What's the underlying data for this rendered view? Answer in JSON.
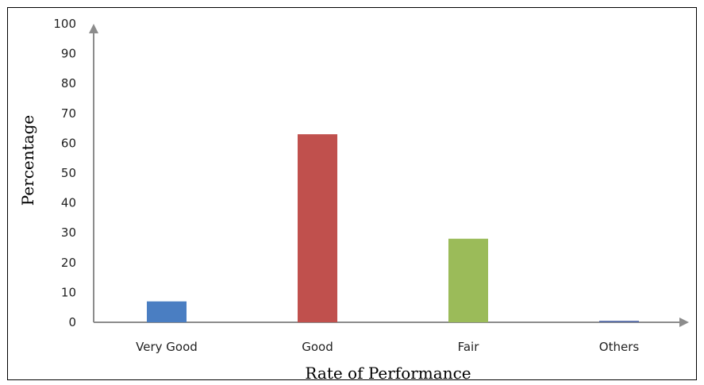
{
  "chart_data": {
    "type": "bar",
    "title": "",
    "xlabel": "Rate of Performance",
    "ylabel": "Percentage",
    "categories": [
      "Very Good",
      "Good",
      "Fair",
      "Others"
    ],
    "values": [
      7,
      63,
      28,
      0.5
    ],
    "colors": [
      "#4a7ec2",
      "#c0504d",
      "#9bbb59",
      "#5a6fa8"
    ],
    "ylim": [
      0,
      100
    ],
    "yticks": [
      "0",
      "10",
      "20",
      "30",
      "40",
      "50",
      "60",
      "70",
      "80",
      "90",
      "100"
    ],
    "grid": false,
    "legend": "none",
    "axis_color": "#8c8c8c"
  }
}
